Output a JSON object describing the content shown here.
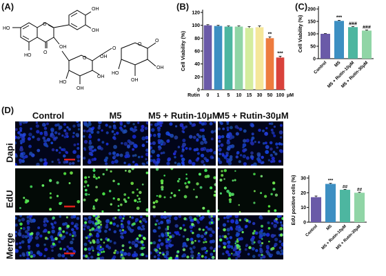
{
  "panels": {
    "a": "(A)",
    "b": "(B)",
    "c": "(C)",
    "d": "(D)"
  },
  "structure": {
    "labels": [
      "HO",
      "OH",
      "OH",
      "HO",
      "OH",
      "O",
      "OH",
      "O",
      "O",
      "O",
      "OH",
      "HO",
      "HO",
      "O",
      "O",
      "OH",
      "OH",
      "OH"
    ]
  },
  "colors": {
    "c1": "#6a5aa8",
    "c2": "#3d8fc2",
    "c3": "#4db6a0",
    "c4": "#90d5a6",
    "c5": "#d4ed9e",
    "c6": "#f5e79a",
    "c7": "#f6b969",
    "c8": "#ed7b3e",
    "c9": "#d9423b",
    "red": "#e0201b"
  },
  "chart_data": [
    {
      "type": "bar",
      "panel": "B",
      "ylabel": "Cell Viability (%)",
      "xlabel": "Rutin",
      "unit": "μM",
      "categories": [
        "0",
        "1",
        "5",
        "10",
        "15",
        "30",
        "50",
        "100"
      ],
      "values": [
        100,
        99,
        98,
        98,
        96,
        97,
        80,
        50
      ],
      "errors": [
        1,
        1,
        1,
        1,
        2,
        2,
        2,
        2
      ],
      "annotations": [
        "",
        "",
        "",
        "",
        "",
        "",
        "**",
        "***"
      ],
      "yticks": [
        "0",
        "20",
        "40",
        "60",
        "80",
        "100",
        "120"
      ],
      "ylim": [
        0,
        120
      ]
    },
    {
      "type": "bar",
      "panel": "C",
      "ylabel": "Cell Viability (%)",
      "categories": [
        "Control",
        "M5",
        "M5 + Rutin-10μM",
        "M5 + Rutin-30μM"
      ],
      "values": [
        100,
        152,
        127,
        113
      ],
      "errors": [
        1,
        2,
        2,
        2
      ],
      "annotations": [
        "",
        "***",
        "###",
        "###"
      ],
      "yticks": [
        "0",
        "50",
        "100",
        "150",
        "200"
      ],
      "ylim": [
        0,
        200
      ]
    },
    {
      "type": "bar",
      "panel": "D",
      "ylabel": "EdU positive cells (%)",
      "categories": [
        "Control",
        "M5",
        "M5 + Rutin-10μM",
        "M5 + Rutin-30μM"
      ],
      "values": [
        17,
        26,
        22,
        20
      ],
      "errors": [
        0.8,
        0.4,
        0.3,
        0.3
      ],
      "annotations": [
        "",
        "***",
        "##",
        "##"
      ],
      "yticks": [
        "0",
        "10",
        "20",
        "30"
      ],
      "ylim": [
        0,
        30
      ]
    }
  ],
  "micrographs": {
    "columns": [
      "Control",
      "M5",
      "M5 + Rutin-10μM",
      "M5 + Rutin-30μM"
    ],
    "rows": [
      "Dapi",
      "EdU",
      "Merge"
    ]
  }
}
